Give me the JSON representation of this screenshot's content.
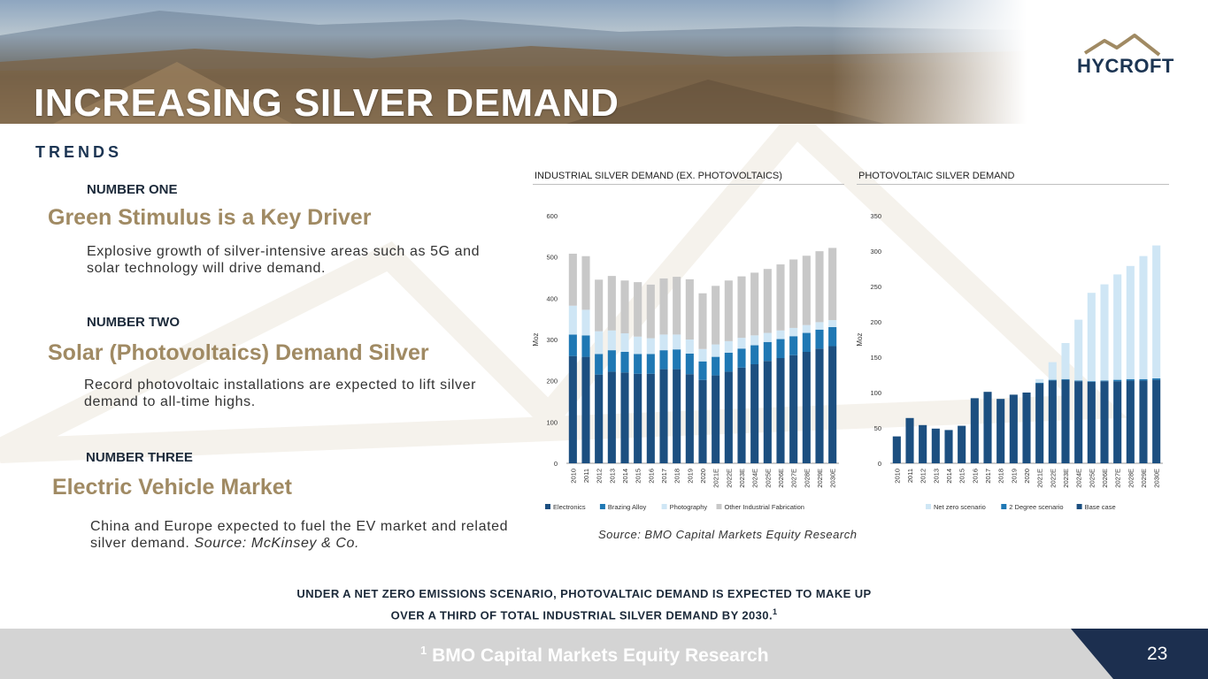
{
  "header": {
    "title": "INCREASING SILVER DEMAND",
    "logo_text": "HYCROFT",
    "section": "TRENDS"
  },
  "trends": [
    {
      "number": "NUMBER ONE",
      "heading": "Green Stimulus is a Key Driver",
      "body": "Explosive growth of silver-intensive areas such as 5G and solar technology will drive demand."
    },
    {
      "number": "NUMBER TWO",
      "heading": "Solar (Photovoltaics) Demand Silver",
      "body": "Record photovoltaic installations are expected to lift silver demand to all-time highs."
    },
    {
      "number": "NUMBER THREE",
      "heading": "Electric Vehicle Market",
      "body": "China and Europe expected to fuel the EV market and related silver demand. ",
      "body_source": "Source: McKinsey & Co."
    }
  ],
  "charts_source": "Source: BMO Capital Markets Equity Research",
  "callout": {
    "line1": "UNDER A NET ZERO EMISSIONS SCENARIO, PHOTOVALTAIC DEMAND IS EXPECTED TO MAKE UP",
    "line2": "OVER A THIRD OF TOTAL INDUSTRIAL SILVER DEMAND BY 2030.",
    "sup": "1"
  },
  "footer": {
    "sup": "1",
    "note": "BMO Capital Markets Equity Research",
    "page": "23"
  },
  "colors": {
    "navy": "#1c4f80",
    "blue": "#1f78b4",
    "light_blue": "#cfe6f5",
    "grey": "#c8c8c8",
    "gold": "#a08a63"
  },
  "chart_data": [
    {
      "type": "bar",
      "stacked": true,
      "title": "INDUSTRIAL SILVER DEMAND (EX. PHOTOVOLTAICS)",
      "ylabel": "Moz",
      "ylim": [
        0,
        600
      ],
      "yticks": [
        0,
        100,
        200,
        300,
        400,
        500,
        600
      ],
      "categories": [
        "2010",
        "2011",
        "2012",
        "2013",
        "2014",
        "2015",
        "2016",
        "2017",
        "2018",
        "2019",
        "2020",
        "2021E",
        "2022E",
        "2023E",
        "2024E",
        "2025E",
        "2026E",
        "2027E",
        "2028E",
        "2029E",
        "2030E"
      ],
      "series": [
        {
          "name": "Electronics",
          "color": "#1c4f80",
          "values": [
            260,
            258,
            215,
            222,
            220,
            217,
            217,
            228,
            228,
            216,
            202,
            213,
            222,
            232,
            240,
            248,
            255,
            262,
            270,
            278,
            284
          ]
        },
        {
          "name": "Brazing Alloy",
          "color": "#1f78b4",
          "values": [
            52,
            52,
            50,
            52,
            50,
            48,
            48,
            46,
            48,
            50,
            45,
            45,
            46,
            46,
            46,
            46,
            46,
            46,
            46,
            46,
            46
          ]
        },
        {
          "name": "Photography",
          "color": "#cfe6f5",
          "values": [
            70,
            62,
            55,
            48,
            45,
            42,
            38,
            38,
            36,
            34,
            30,
            30,
            28,
            26,
            24,
            22,
            21,
            20,
            19,
            18,
            17
          ]
        },
        {
          "name": "Other Industrial Fabrication",
          "color": "#c8c8c8",
          "values": [
            126,
            130,
            125,
            132,
            128,
            132,
            130,
            136,
            140,
            146,
            135,
            142,
            147,
            149,
            152,
            155,
            160,
            166,
            168,
            172,
            175
          ]
        }
      ]
    },
    {
      "type": "bar",
      "stacked": true,
      "title": "PHOTOVOLTAIC SILVER DEMAND",
      "ylabel": "Moz",
      "ylim": [
        0,
        350
      ],
      "yticks": [
        0,
        50,
        100,
        150,
        200,
        250,
        300,
        350
      ],
      "categories": [
        "2010",
        "2011",
        "2012",
        "2013",
        "2014",
        "2015",
        "2016",
        "2017",
        "2018",
        "2019",
        "2020",
        "2021E",
        "2022E",
        "2023E",
        "2024E",
        "2025E",
        "2026E",
        "2027E",
        "2028E",
        "2029E",
        "2030E"
      ],
      "series": [
        {
          "name": "Base case",
          "color": "#1c4f80",
          "values": [
            38,
            64,
            54,
            49,
            47,
            53,
            92,
            101,
            91,
            97,
            100,
            113,
            117,
            118,
            116,
            115,
            116,
            116,
            117,
            117,
            118
          ]
        },
        {
          "name": "2 Degree scenario",
          "color": "#1f78b4",
          "values": [
            0,
            0,
            0,
            0,
            0,
            0,
            0,
            0,
            0,
            0,
            0,
            1,
            1,
            1,
            1,
            1,
            1,
            2,
            2,
            2,
            2
          ]
        },
        {
          "name": "Net zero scenario",
          "color": "#cfe6f5",
          "values": [
            0,
            0,
            0,
            0,
            0,
            0,
            0,
            0,
            0,
            0,
            0,
            5,
            25,
            51,
            86,
            125,
            136,
            149,
            160,
            174,
            188
          ]
        }
      ]
    }
  ]
}
